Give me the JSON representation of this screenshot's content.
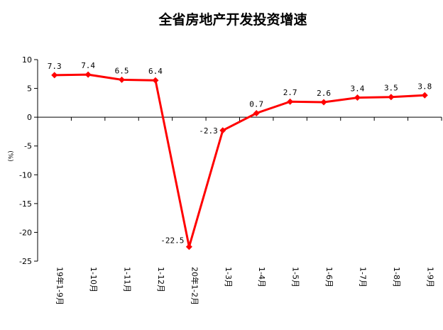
{
  "chart_data": {
    "type": "line",
    "title": "全省房地产开发投资增速",
    "ylabel": "(%)",
    "xlabel": "",
    "ylim": [
      -25,
      10
    ],
    "yticks": [
      10,
      5,
      0,
      -5,
      -10,
      -15,
      -20,
      -25
    ],
    "categories": [
      "19年1-9月",
      "1-10月",
      "1-11月",
      "1-12月",
      "20年1-2月",
      "1-3月",
      "1-4月",
      "1-5月",
      "1-6月",
      "1-7月",
      "1-8月",
      "1-9月"
    ],
    "series": [
      {
        "values": [
          7.3,
          7.4,
          6.5,
          6.4,
          -22.5,
          -2.3,
          0.7,
          2.7,
          2.6,
          3.4,
          3.5,
          3.8
        ],
        "labels": [
          "7.3",
          "7.4",
          "6.5",
          "6.4",
          "-22.5",
          "-2.3",
          "0.7",
          "2.7",
          "2.6",
          "3.4",
          "3.5",
          "3.8"
        ],
        "color": "#ff0000",
        "marker": "diamond"
      }
    ],
    "grid": false,
    "legend": "none"
  }
}
